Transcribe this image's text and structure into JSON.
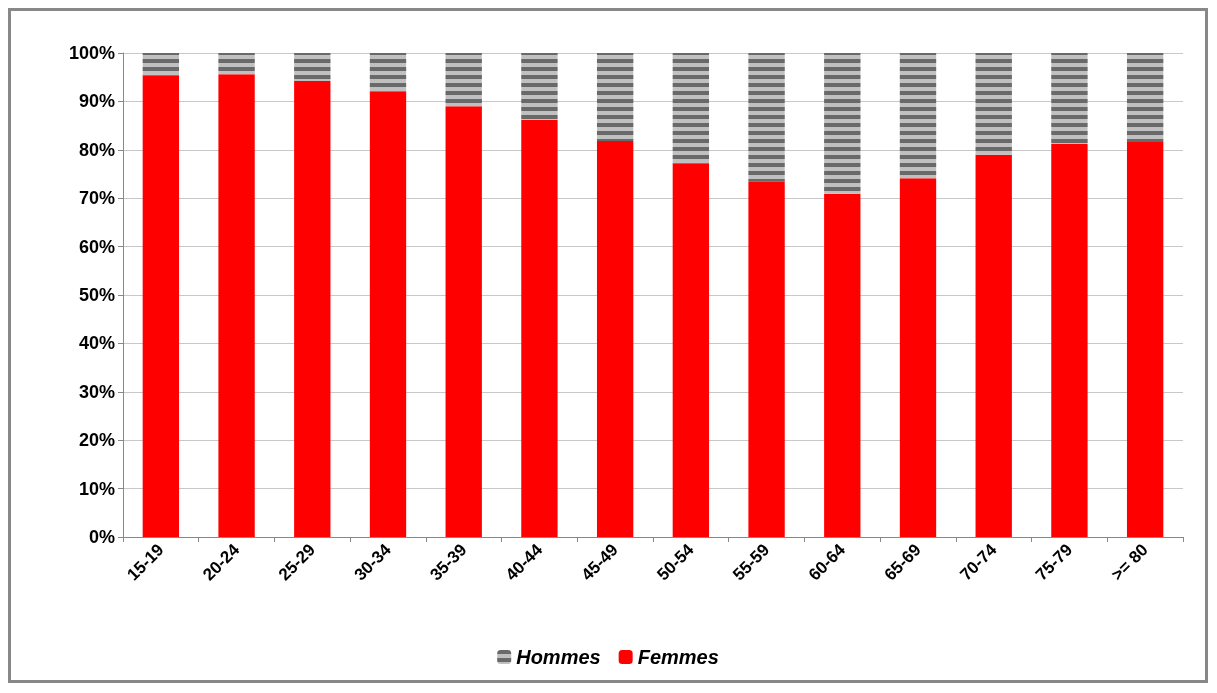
{
  "chart_data": {
    "type": "bar",
    "stacked": true,
    "categories": [
      "15-19",
      "20-24",
      "25-29",
      "30-34",
      "35-39",
      "40-44",
      "45-49",
      "50-54",
      "55-59",
      "60-64",
      "65-69",
      "70-74",
      "75-79",
      ">= 80"
    ],
    "series": [
      {
        "name": "Femmes",
        "color": "#ff0000",
        "values": [
          95.4,
          95.6,
          94.2,
          92.0,
          89.0,
          86.2,
          81.8,
          77.2,
          73.5,
          70.9,
          74.1,
          79.0,
          81.2,
          81.6
        ]
      },
      {
        "name": "Hommes",
        "color": "#c0c0c0",
        "values": [
          4.6,
          4.4,
          5.8,
          8.0,
          11.0,
          13.8,
          18.2,
          22.8,
          26.5,
          29.1,
          25.9,
          21.0,
          18.8,
          18.4
        ]
      }
    ],
    "ylim": [
      0,
      100
    ],
    "yticks": [
      {
        "value": 0,
        "label": "0%"
      },
      {
        "value": 10,
        "label": "10%"
      },
      {
        "value": 20,
        "label": "20%"
      },
      {
        "value": 30,
        "label": "30%"
      },
      {
        "value": 40,
        "label": "40%"
      },
      {
        "value": 50,
        "label": "50%"
      },
      {
        "value": 60,
        "label": "60%"
      },
      {
        "value": 70,
        "label": "70%"
      },
      {
        "value": 80,
        "label": "80%"
      },
      {
        "value": 90,
        "label": "90%"
      },
      {
        "value": 100,
        "label": "100%"
      }
    ],
    "grid": "y",
    "legend": "bottom"
  }
}
